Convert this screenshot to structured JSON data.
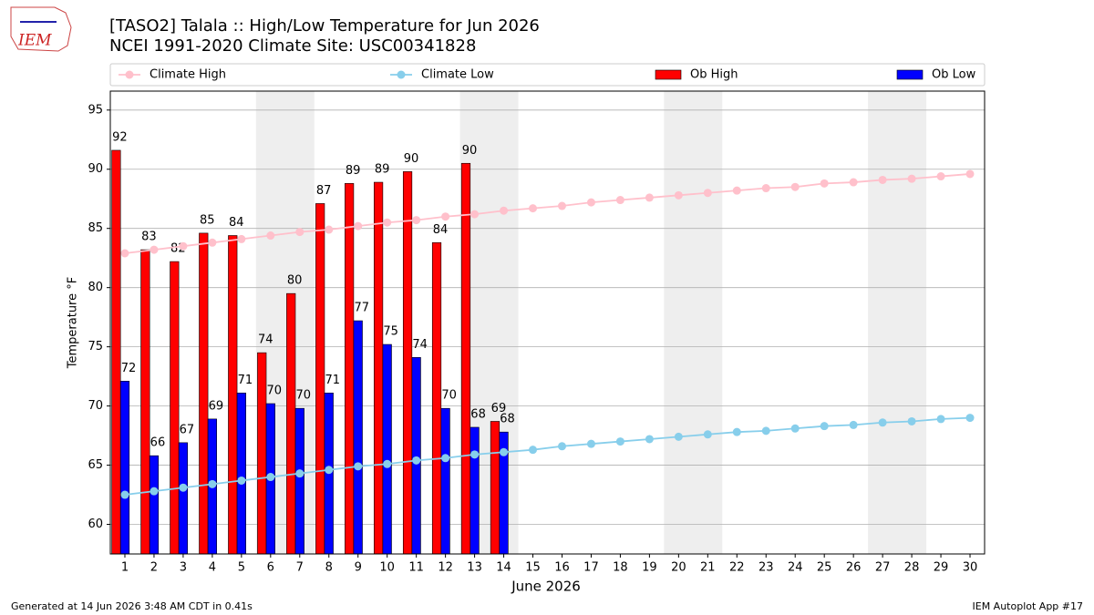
{
  "chart_data": {
    "type": "bar_line",
    "title": "[TASO2] Talala :: High/Low Temperature for Jun 2026",
    "subtitle": "NCEI 1991-2020 Climate Site: USC00341828",
    "xlabel": "June 2026",
    "ylabel": "Temperature °F",
    "logo_text": "IEM",
    "footer_left": "Generated at 14 Jun 2026 3:48 AM CDT in 0.41s",
    "footer_right": "IEM Autoplot App #17",
    "x": [
      1,
      2,
      3,
      4,
      5,
      6,
      7,
      8,
      9,
      10,
      11,
      12,
      13,
      14,
      15,
      16,
      17,
      18,
      19,
      20,
      21,
      22,
      23,
      24,
      25,
      26,
      27,
      28,
      29,
      30
    ],
    "xlim": [
      0.5,
      30.5
    ],
    "xticks": [
      1,
      2,
      3,
      4,
      5,
      6,
      7,
      8,
      9,
      10,
      11,
      12,
      13,
      14,
      15,
      16,
      17,
      18,
      19,
      20,
      21,
      22,
      23,
      24,
      25,
      26,
      27,
      28,
      29,
      30
    ],
    "ylim": [
      57.5,
      96.6
    ],
    "yticks": [
      60,
      65,
      70,
      75,
      80,
      85,
      90,
      95
    ],
    "grid": true,
    "shaded_ranges": [
      [
        5.5,
        7.5
      ],
      [
        12.5,
        14.5
      ],
      [
        19.5,
        21.5
      ],
      [
        26.5,
        28.5
      ]
    ],
    "series": [
      {
        "name": "Climate High",
        "kind": "line",
        "color": "#ffc0cb",
        "values": [
          82.9,
          83.2,
          83.5,
          83.8,
          84.1,
          84.4,
          84.7,
          84.9,
          85.2,
          85.5,
          85.7,
          86.0,
          86.2,
          86.5,
          86.7,
          86.9,
          87.2,
          87.4,
          87.6,
          87.8,
          88.0,
          88.2,
          88.4,
          88.5,
          88.8,
          88.9,
          89.1,
          89.2,
          89.4,
          89.6
        ]
      },
      {
        "name": "Climate Low",
        "kind": "line",
        "color": "#87ceeb",
        "values": [
          62.5,
          62.8,
          63.1,
          63.4,
          63.7,
          64.0,
          64.3,
          64.6,
          64.9,
          65.1,
          65.4,
          65.6,
          65.9,
          66.1,
          66.3,
          66.6,
          66.8,
          67.0,
          67.2,
          67.4,
          67.6,
          67.8,
          67.9,
          68.1,
          68.3,
          68.4,
          68.6,
          68.7,
          68.9,
          69.0
        ]
      },
      {
        "name": "Ob High",
        "kind": "bar",
        "color": "#ff0000",
        "values": [
          91.6,
          83.2,
          82.2,
          84.6,
          84.4,
          74.5,
          79.5,
          87.1,
          88.8,
          88.9,
          89.8,
          83.8,
          90.5,
          68.7,
          null,
          null,
          null,
          null,
          null,
          null,
          null,
          null,
          null,
          null,
          null,
          null,
          null,
          null,
          null,
          null
        ],
        "value_labels": [
          "92",
          "83",
          "82",
          "85",
          "84",
          "74",
          "80",
          "87",
          "89",
          "89",
          "90",
          "84",
          "90",
          "69",
          null,
          null,
          null,
          null,
          null,
          null,
          null,
          null,
          null,
          null,
          null,
          null,
          null,
          null,
          null,
          null
        ]
      },
      {
        "name": "Ob Low",
        "kind": "bar",
        "color": "#0000ff",
        "values": [
          72.1,
          65.8,
          66.9,
          68.9,
          71.1,
          70.2,
          69.8,
          71.1,
          77.2,
          75.2,
          74.1,
          69.8,
          68.2,
          67.8,
          null,
          null,
          null,
          null,
          null,
          null,
          null,
          null,
          null,
          null,
          null,
          null,
          null,
          null,
          null,
          null
        ],
        "value_labels": [
          "72",
          "66",
          "67",
          "69",
          "71",
          "70",
          "70",
          "71",
          "77",
          "75",
          "74",
          "70",
          "68",
          "68",
          null,
          null,
          null,
          null,
          null,
          null,
          null,
          null,
          null,
          null,
          null,
          null,
          null,
          null,
          null,
          null
        ]
      }
    ]
  }
}
